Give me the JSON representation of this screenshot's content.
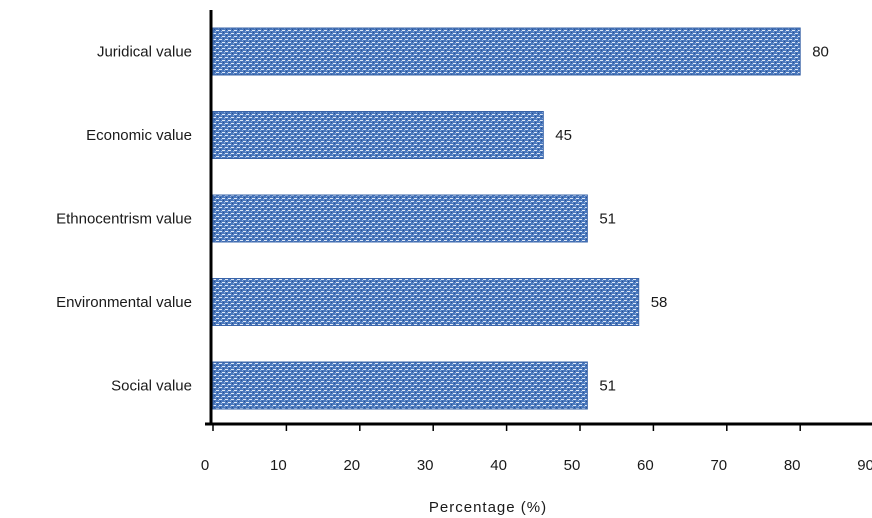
{
  "chart_data": {
    "type": "bar",
    "orientation": "horizontal",
    "categories": [
      "Juridical value",
      "Economic value",
      "Ethnocentrism value",
      "Environmental value",
      "Social value"
    ],
    "values": [
      80,
      45,
      51,
      58,
      51
    ],
    "data_labels": [
      "80",
      "45",
      "51",
      "58",
      "51"
    ],
    "xlabel": "Percentage (%)",
    "ylabel": "",
    "xlim": [
      0,
      90
    ],
    "x_ticks": [
      "0",
      "10",
      "20",
      "30",
      "40",
      "50",
      "60",
      "70",
      "80",
      "90"
    ],
    "grid": false,
    "legend": "none",
    "bar_color": "#3f6fb5"
  }
}
